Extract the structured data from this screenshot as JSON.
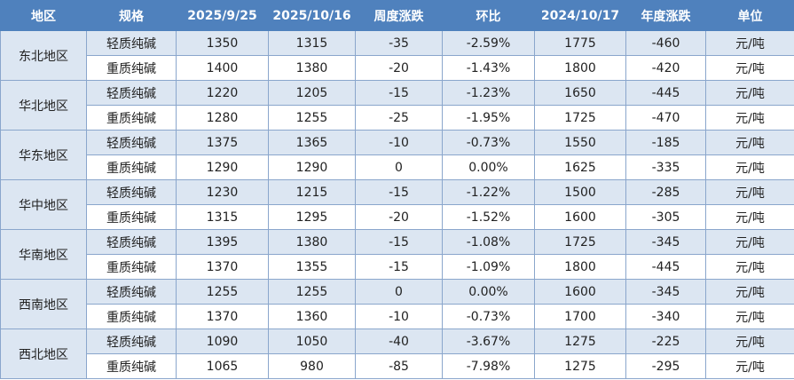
{
  "table": {
    "header": [
      "地区",
      "规格",
      "2025/9/25",
      "2025/10/16",
      "周度涨跌",
      "环比",
      "2024/10/17",
      "年度涨跌",
      "单位"
    ],
    "regions": [
      {
        "name": "东北地区",
        "rows": [
          [
            "轻质纯碱",
            "1350",
            "1315",
            "-35",
            "-2.59%",
            "1775",
            "-460",
            "元/吨"
          ],
          [
            "重质纯碱",
            "1400",
            "1380",
            "-20",
            "-1.43%",
            "1800",
            "-420",
            "元/吨"
          ]
        ]
      },
      {
        "name": "华北地区",
        "rows": [
          [
            "轻质纯碱",
            "1220",
            "1205",
            "-15",
            "-1.23%",
            "1650",
            "-445",
            "元/吨"
          ],
          [
            "重质纯碱",
            "1280",
            "1255",
            "-25",
            "-1.95%",
            "1725",
            "-470",
            "元/吨"
          ]
        ]
      },
      {
        "name": "华东地区",
        "rows": [
          [
            "轻质纯碱",
            "1375",
            "1365",
            "-10",
            "-0.73%",
            "1550",
            "-185",
            "元/吨"
          ],
          [
            "重质纯碱",
            "1290",
            "1290",
            "0",
            "0.00%",
            "1625",
            "-335",
            "元/吨"
          ]
        ]
      },
      {
        "name": "华中地区",
        "rows": [
          [
            "轻质纯碱",
            "1230",
            "1215",
            "-15",
            "-1.22%",
            "1500",
            "-285",
            "元/吨"
          ],
          [
            "重质纯碱",
            "1315",
            "1295",
            "-20",
            "-1.52%",
            "1600",
            "-305",
            "元/吨"
          ]
        ]
      },
      {
        "name": "华南地区",
        "rows": [
          [
            "轻质纯碱",
            "1395",
            "1380",
            "-15",
            "-1.08%",
            "1725",
            "-345",
            "元/吨"
          ],
          [
            "重质纯碱",
            "1370",
            "1355",
            "-15",
            "-1.09%",
            "1800",
            "-445",
            "元/吨"
          ]
        ]
      },
      {
        "name": "西南地区",
        "rows": [
          [
            "轻质纯碱",
            "1255",
            "1255",
            "0",
            "0.00%",
            "1600",
            "-345",
            "元/吨"
          ],
          [
            "重质纯碱",
            "1370",
            "1360",
            "-10",
            "-0.73%",
            "1700",
            "-340",
            "元/吨"
          ]
        ]
      },
      {
        "name": "西北地区",
        "rows": [
          [
            "轻质纯碱",
            "1090",
            "1050",
            "-40",
            "-3.67%",
            "1275",
            "-225",
            "元/吨"
          ],
          [
            "重质纯碱",
            "1065",
            "980",
            "-85",
            "-7.98%",
            "1275",
            "-295",
            "元/吨"
          ]
        ]
      }
    ]
  }
}
